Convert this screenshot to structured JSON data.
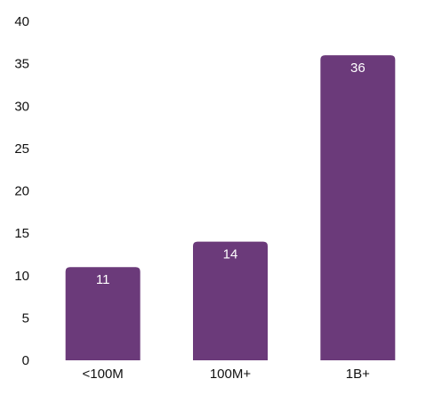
{
  "chart_data": {
    "type": "bar",
    "categories": [
      "<100M",
      "100M+",
      "1B+"
    ],
    "values": [
      11,
      14,
      36
    ],
    "data_labels": [
      "11",
      "14",
      "36"
    ],
    "ylim": [
      0,
      40
    ],
    "yticks": [
      0,
      5,
      10,
      15,
      20,
      25,
      30,
      35,
      40
    ],
    "grid": false,
    "legend": "none",
    "bar_color": "#6b3a7a",
    "label_color": "#ffffff"
  }
}
